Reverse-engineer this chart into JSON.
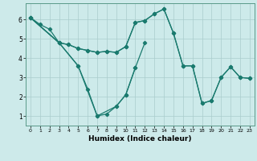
{
  "xlabel": "Humidex (Indice chaleur)",
  "background_color": "#cdeaea",
  "grid_color": "#aacccc",
  "line_color": "#1a7a6e",
  "xlim": [
    -0.5,
    23.5
  ],
  "ylim": [
    0.5,
    6.85
  ],
  "xticks": [
    0,
    1,
    2,
    3,
    4,
    5,
    6,
    7,
    8,
    9,
    10,
    11,
    12,
    13,
    14,
    15,
    16,
    17,
    18,
    19,
    20,
    21,
    22,
    23
  ],
  "yticks": [
    1,
    2,
    3,
    4,
    5,
    6
  ],
  "series": [
    {
      "x": [
        0,
        1,
        2,
        3,
        4,
        5,
        6,
        7,
        8,
        9,
        10,
        11,
        12,
        13,
        14,
        15,
        16,
        17,
        18,
        19,
        20,
        21,
        22,
        23
      ],
      "y": [
        6.1,
        5.75,
        5.5,
        4.8,
        4.7,
        4.5,
        4.4,
        4.3,
        4.35,
        4.3,
        4.6,
        5.85,
        5.95,
        6.3,
        6.55,
        5.3,
        3.6,
        3.6,
        1.65,
        1.8,
        3.0,
        3.55,
        3.0,
        2.95
      ]
    },
    {
      "x": [
        0,
        3,
        5,
        6,
        7,
        8,
        9,
        10,
        11,
        12
      ],
      "y": [
        6.1,
        4.8,
        3.6,
        2.4,
        1.0,
        1.1,
        1.5,
        2.1,
        3.5,
        4.8
      ]
    },
    {
      "x": [
        0,
        3,
        5,
        7,
        9,
        10,
        11
      ],
      "y": [
        6.1,
        4.8,
        3.6,
        1.0,
        1.5,
        2.1,
        3.5
      ]
    },
    {
      "x": [
        0,
        3,
        4,
        5,
        6,
        7,
        8,
        9,
        10,
        11,
        12,
        13,
        14,
        15,
        16,
        17,
        18,
        19,
        20,
        21,
        22,
        23
      ],
      "y": [
        6.1,
        4.8,
        4.7,
        4.5,
        4.4,
        4.3,
        4.35,
        4.3,
        4.6,
        5.85,
        5.95,
        6.3,
        6.55,
        5.3,
        3.6,
        3.6,
        1.65,
        1.8,
        3.0,
        3.55,
        3.0,
        2.95
      ]
    }
  ]
}
